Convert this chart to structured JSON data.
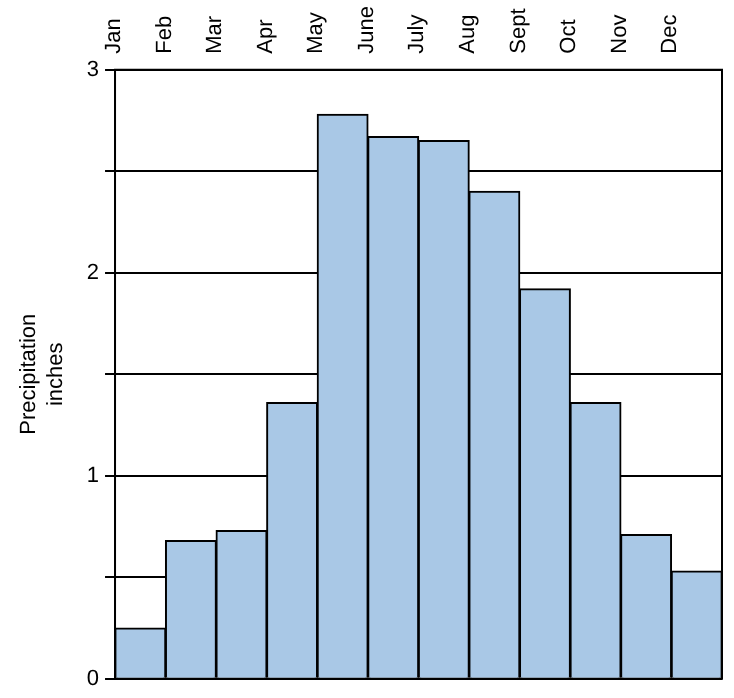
{
  "chart_data": {
    "type": "bar",
    "ylabel": "Precipitation\ninches",
    "categories": [
      "Jan",
      "Feb",
      "Mar",
      "Apr",
      "May",
      "June",
      "July",
      "Aug",
      "Sept",
      "Oct",
      "Nov",
      "Dec"
    ],
    "values": [
      0.25,
      0.68,
      0.73,
      1.36,
      2.78,
      2.67,
      2.65,
      2.4,
      1.92,
      1.36,
      0.71,
      0.53
    ],
    "color": "#a9c8e6",
    "ylim": [
      0,
      3
    ],
    "yticks": [
      0,
      {
        "value": 0.5,
        "label": null
      },
      1,
      {
        "value": 1.5,
        "label": null
      },
      2,
      {
        "value": 2.5,
        "label": null
      },
      3
    ],
    "grid": "y"
  }
}
